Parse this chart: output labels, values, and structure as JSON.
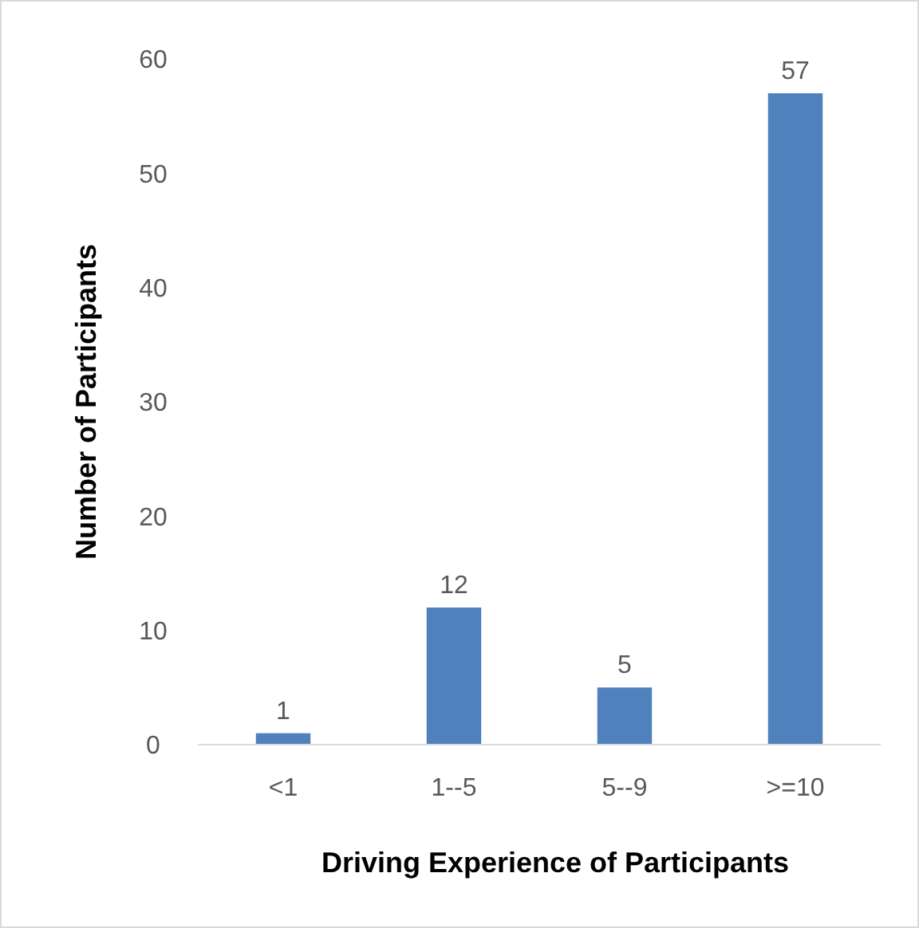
{
  "chart_data": {
    "type": "bar",
    "xlabel": "Driving Experience of Participants",
    "ylabel": "Number of Participants",
    "categories": [
      "<1",
      "1--5",
      "5--9",
      ">=10"
    ],
    "values": [
      1,
      12,
      5,
      57
    ],
    "color": "#4f81bd",
    "data_labels": true,
    "ylim": [
      0,
      60
    ],
    "yticks": [
      0,
      10,
      20,
      30,
      40,
      50,
      60
    ],
    "grid": false
  }
}
